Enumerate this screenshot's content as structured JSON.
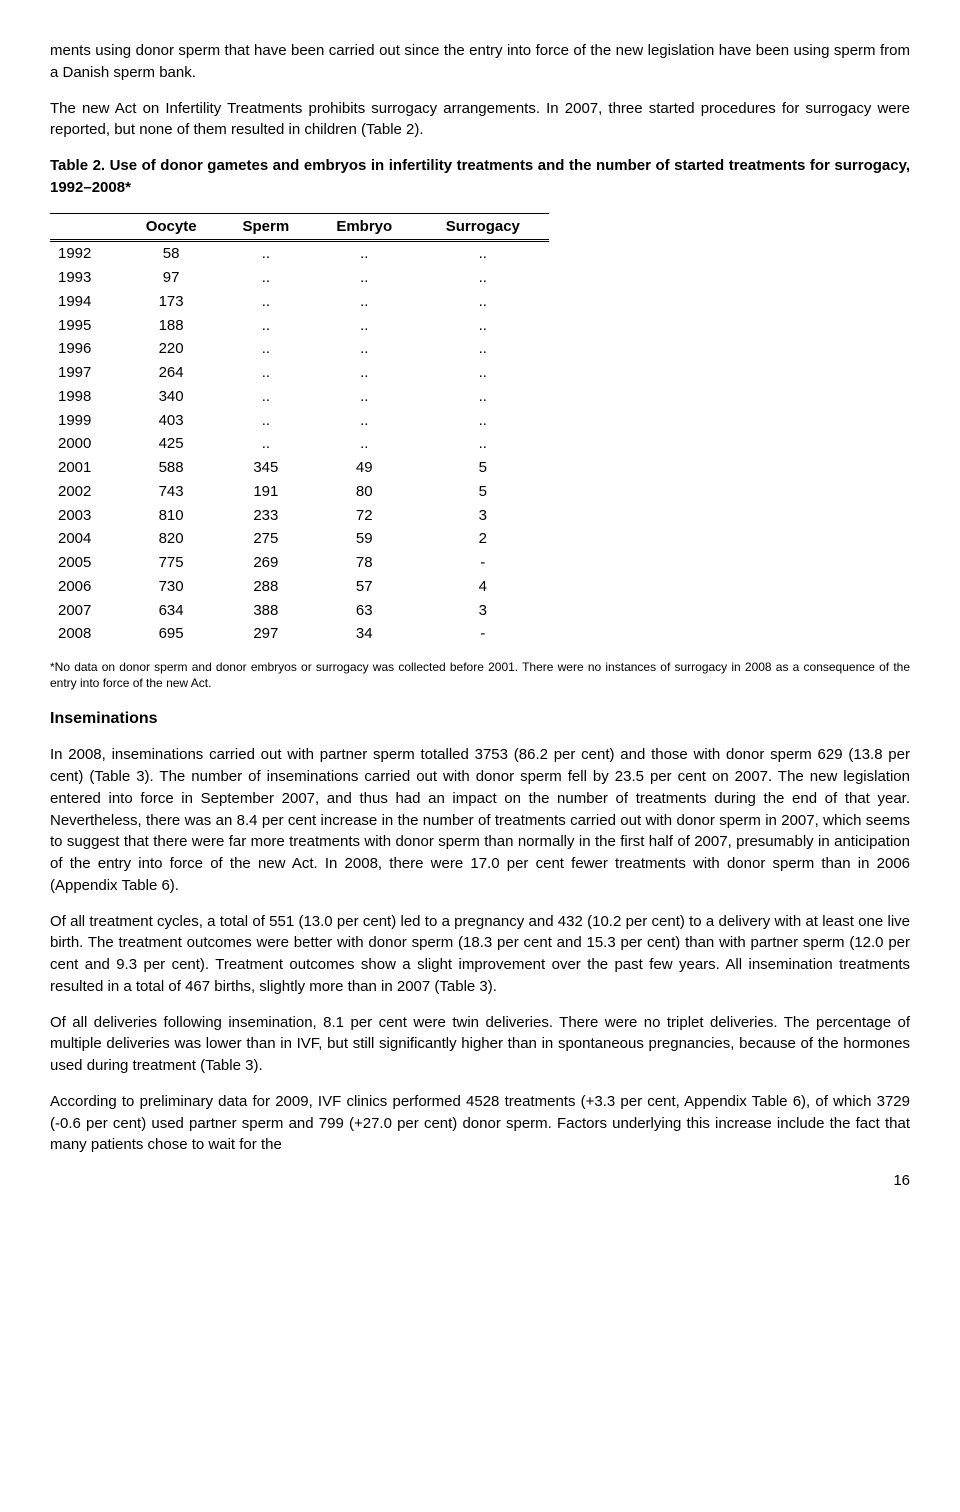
{
  "para1": "ments using donor sperm that have been carried out since the entry into force of the new legislation have been using sperm from a Danish sperm bank.",
  "para2": "The new Act on Infertility Treatments prohibits surrogacy arrangements. In 2007, three started procedures for surrogacy were reported, but none of them resulted in children (Table 2).",
  "table2_title": "Table 2. Use of donor gametes and embryos in infertility treatments and the number of started treatments for surrogacy, 1992–2008*",
  "table2": {
    "columns": [
      "",
      "Oocyte",
      "Sperm",
      "Embryo",
      "Surrogacy"
    ],
    "rows": [
      [
        "1992",
        "58",
        "..",
        "..",
        ".."
      ],
      [
        "1993",
        "97",
        "..",
        "..",
        ".."
      ],
      [
        "1994",
        "173",
        "..",
        "..",
        ".."
      ],
      [
        "1995",
        "188",
        "..",
        "..",
        ".."
      ],
      [
        "1996",
        "220",
        "..",
        "..",
        ".."
      ],
      [
        "1997",
        "264",
        "..",
        "..",
        ".."
      ],
      [
        "1998",
        "340",
        "..",
        "..",
        ".."
      ],
      [
        "1999",
        "403",
        "..",
        "..",
        ".."
      ],
      [
        "2000",
        "425",
        "..",
        "..",
        ".."
      ],
      [
        "2001",
        "588",
        "345",
        "49",
        "5"
      ],
      [
        "2002",
        "743",
        "191",
        "80",
        "5"
      ],
      [
        "2003",
        "810",
        "233",
        "72",
        "3"
      ],
      [
        "2004",
        "820",
        "275",
        "59",
        "2"
      ],
      [
        "2005",
        "775",
        "269",
        "78",
        "-"
      ],
      [
        "2006",
        "730",
        "288",
        "57",
        "4"
      ],
      [
        "2007",
        "634",
        "388",
        "63",
        "3"
      ],
      [
        "2008",
        "695",
        "297",
        "34",
        "-"
      ]
    ]
  },
  "table2_footnote": "*No data on donor sperm and donor embryos or surrogacy was collected before 2001. There were no instances of surrogacy in 2008 as a consequence of the entry into force of the new Act.",
  "section_heading": "Inseminations",
  "para3": "In 2008, inseminations carried out with partner sperm totalled 3753 (86.2 per cent) and those with donor sperm 629 (13.8 per cent) (Table 3). The number of inseminations carried out with donor sperm fell by 23.5 per cent on 2007. The new legislation entered into force in September 2007, and thus had an impact on the number of treatments during the end of that year. Nevertheless, there was an 8.4 per cent increase in the number of treatments carried out with donor sperm in 2007, which seems to suggest that there were far more treatments with donor sperm than normally in the first half of 2007, presumably in anticipation of the entry into force of the new Act. In 2008, there were 17.0 per cent fewer treatments with donor sperm than in 2006 (Appendix Table 6).",
  "para4": "Of all treatment cycles, a total of 551 (13.0 per cent) led to a pregnancy and 432 (10.2 per cent) to a delivery with at least one live birth. The treatment outcomes were better with donor sperm (18.3 per cent and 15.3 per cent) than with partner sperm (12.0 per cent and 9.3 per cent). Treatment outcomes show a slight improvement over the past few years. All insemination treatments resulted in a total of 467 births, slightly more than in 2007 (Table 3).",
  "para5": "Of all deliveries following insemination, 8.1 per cent were twin deliveries. There were no triplet deliveries. The percentage of multiple deliveries was lower than in IVF, but still significantly higher than in spontaneous pregnancies, because of the hormones used during treatment (Table 3).",
  "para6": "According to preliminary data for 2009, IVF clinics performed 4528 treatments (+3.3 per cent, Appendix Table 6), of which 3729 (-0.6 per cent) used partner sperm and 799 (+27.0 per cent) donor sperm. Factors underlying this increase include the fact that many patients chose to wait for the",
  "page_number": "16"
}
